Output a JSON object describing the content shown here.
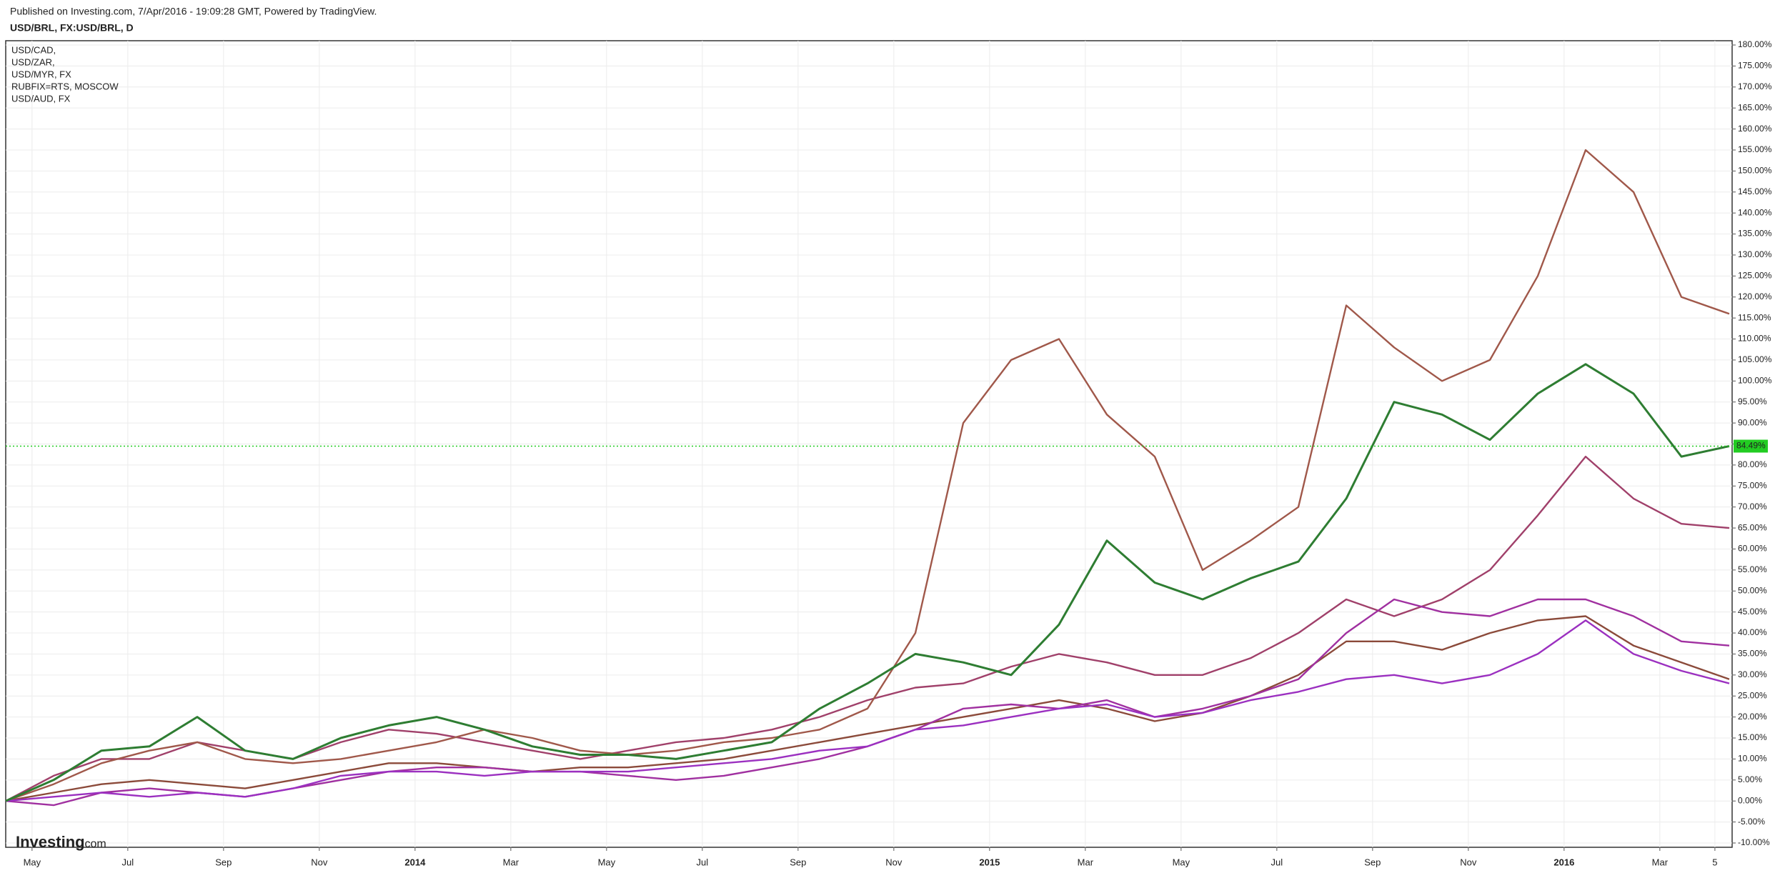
{
  "header": "Published on Investing.com, 7/Apr/2016 - 19:09:28 GMT, Powered by TradingView.",
  "chart_data": {
    "type": "line",
    "title": "USD/BRL, FX:USD/BRL, D",
    "x": [
      0,
      1,
      2,
      3,
      4,
      5,
      6,
      7,
      8,
      9,
      10,
      11,
      12,
      13,
      14,
      15,
      16,
      17,
      18,
      19,
      20,
      21,
      22,
      23,
      24,
      25,
      26,
      27,
      28,
      29,
      30,
      31,
      32,
      33,
      34,
      35,
      36
    ],
    "xlim": [
      0,
      36
    ],
    "xticks": [
      {
        "value": 0.55,
        "label": "May"
      },
      {
        "value": 2.55,
        "label": "Jul"
      },
      {
        "value": 4.55,
        "label": "Sep"
      },
      {
        "value": 6.55,
        "label": "Nov"
      },
      {
        "value": 8.55,
        "label": "2014"
      },
      {
        "value": 10.55,
        "label": "Mar"
      },
      {
        "value": 12.55,
        "label": "May"
      },
      {
        "value": 14.55,
        "label": "Jul"
      },
      {
        "value": 16.55,
        "label": "Sep"
      },
      {
        "value": 18.55,
        "label": "Nov"
      },
      {
        "value": 20.55,
        "label": "2015"
      },
      {
        "value": 22.55,
        "label": "Mar"
      },
      {
        "value": 24.55,
        "label": "May"
      },
      {
        "value": 26.55,
        "label": "Jul"
      },
      {
        "value": 28.55,
        "label": "Sep"
      },
      {
        "value": 30.55,
        "label": "Nov"
      },
      {
        "value": 32.55,
        "label": "2016"
      },
      {
        "value": 34.55,
        "label": "Mar"
      },
      {
        "value": 35.7,
        "label": "5"
      }
    ],
    "ylim": [
      -10,
      180
    ],
    "yticks": [
      {
        "value": 180,
        "label": "180.00%"
      },
      {
        "value": 175,
        "label": "175.00%"
      },
      {
        "value": 170,
        "label": "170.00%"
      },
      {
        "value": 165,
        "label": "165.00%"
      },
      {
        "value": 160,
        "label": "160.00%"
      },
      {
        "value": 155,
        "label": "155.00%"
      },
      {
        "value": 150,
        "label": "150.00%"
      },
      {
        "value": 145,
        "label": "145.00%"
      },
      {
        "value": 140,
        "label": "140.00%"
      },
      {
        "value": 135,
        "label": "135.00%"
      },
      {
        "value": 130,
        "label": "130.00%"
      },
      {
        "value": 125,
        "label": "125.00%"
      },
      {
        "value": 120,
        "label": "120.00%"
      },
      {
        "value": 115,
        "label": "115.00%"
      },
      {
        "value": 110,
        "label": "110.00%"
      },
      {
        "value": 105,
        "label": "105.00%"
      },
      {
        "value": 100,
        "label": "100.00%"
      },
      {
        "value": 95,
        "label": "95.00%"
      },
      {
        "value": 90,
        "label": "90.00%"
      },
      {
        "value": 85,
        "label": "85.00%"
      },
      {
        "value": 80,
        "label": "80.00%"
      },
      {
        "value": 75,
        "label": "75.00%"
      },
      {
        "value": 70,
        "label": "70.00%"
      },
      {
        "value": 65,
        "label": "65.00%"
      },
      {
        "value": 60,
        "label": "60.00%"
      },
      {
        "value": 55,
        "label": "55.00%"
      },
      {
        "value": 50,
        "label": "50.00%"
      },
      {
        "value": 45,
        "label": "45.00%"
      },
      {
        "value": 40,
        "label": "40.00%"
      },
      {
        "value": 35,
        "label": "35.00%"
      },
      {
        "value": 30,
        "label": "30.00%"
      },
      {
        "value": 25,
        "label": "25.00%"
      },
      {
        "value": 20,
        "label": "20.00%"
      },
      {
        "value": 15,
        "label": "15.00%"
      },
      {
        "value": 10,
        "label": "10.00%"
      },
      {
        "value": 5,
        "label": "5.00%"
      },
      {
        "value": 0,
        "label": "0.00%"
      },
      {
        "value": -5,
        "label": "-5.00%"
      },
      {
        "value": -10,
        "label": "-10.00%"
      }
    ],
    "grid": true,
    "main_series": {
      "color": "#2e7d32",
      "values": [
        0,
        5,
        12,
        13,
        20,
        12,
        10,
        15,
        18,
        20,
        17,
        13,
        11,
        11,
        10,
        12,
        14,
        22,
        28,
        35,
        33,
        30,
        42,
        62,
        52,
        48,
        53,
        57,
        72,
        95,
        92,
        86,
        97,
        104,
        97,
        82,
        84.49
      ]
    },
    "series": [
      {
        "name": "USD/CAD,",
        "color": "#8b4a3a",
        "values": [
          0,
          2,
          4,
          5,
          4,
          3,
          5,
          7,
          9,
          9,
          8,
          7,
          8,
          8,
          9,
          10,
          12,
          14,
          16,
          18,
          20,
          22,
          24,
          22,
          19,
          21,
          25,
          30,
          38,
          38,
          36,
          40,
          43,
          44,
          37,
          33,
          29
        ]
      },
      {
        "name": "USD/ZAR,",
        "color": "#a0406a",
        "values": [
          0,
          6,
          10,
          10,
          14,
          12,
          10,
          14,
          17,
          16,
          14,
          12,
          10,
          12,
          14,
          15,
          17,
          20,
          24,
          27,
          28,
          32,
          35,
          33,
          30,
          30,
          34,
          40,
          48,
          44,
          48,
          55,
          68,
          82,
          72,
          66,
          65
        ]
      },
      {
        "name": "USD/MYR, FX",
        "color": "#a030a0",
        "values": [
          0,
          -1,
          2,
          3,
          2,
          1,
          3,
          5,
          7,
          8,
          8,
          7,
          7,
          6,
          5,
          6,
          8,
          10,
          13,
          17,
          22,
          23,
          22,
          24,
          20,
          22,
          25,
          29,
          40,
          48,
          45,
          44,
          48,
          48,
          44,
          38,
          37
        ]
      },
      {
        "name": "RUBFIX=RTS, MOSCOW",
        "color": "#a0584a",
        "values": [
          0,
          4,
          9,
          12,
          14,
          10,
          9,
          10,
          12,
          14,
          17,
          15,
          12,
          11,
          12,
          14,
          15,
          17,
          22,
          40,
          90,
          105,
          110,
          92,
          82,
          55,
          62,
          70,
          118,
          108,
          100,
          105,
          125,
          155,
          145,
          120,
          116
        ]
      },
      {
        "name": "USD/AUD, FX",
        "color": "#9b30c0",
        "values": [
          0,
          1,
          2,
          1,
          2,
          1,
          3,
          6,
          7,
          7,
          6,
          7,
          7,
          7,
          8,
          9,
          10,
          12,
          13,
          17,
          18,
          20,
          22,
          23,
          20,
          21,
          24,
          26,
          29,
          30,
          28,
          30,
          35,
          43,
          35,
          31,
          28
        ]
      }
    ],
    "last_value": {
      "value": 84.49,
      "label": "84.49%",
      "color": "#22cc22"
    }
  },
  "logo": {
    "brand": "Investing",
    "suffix": ".com"
  }
}
